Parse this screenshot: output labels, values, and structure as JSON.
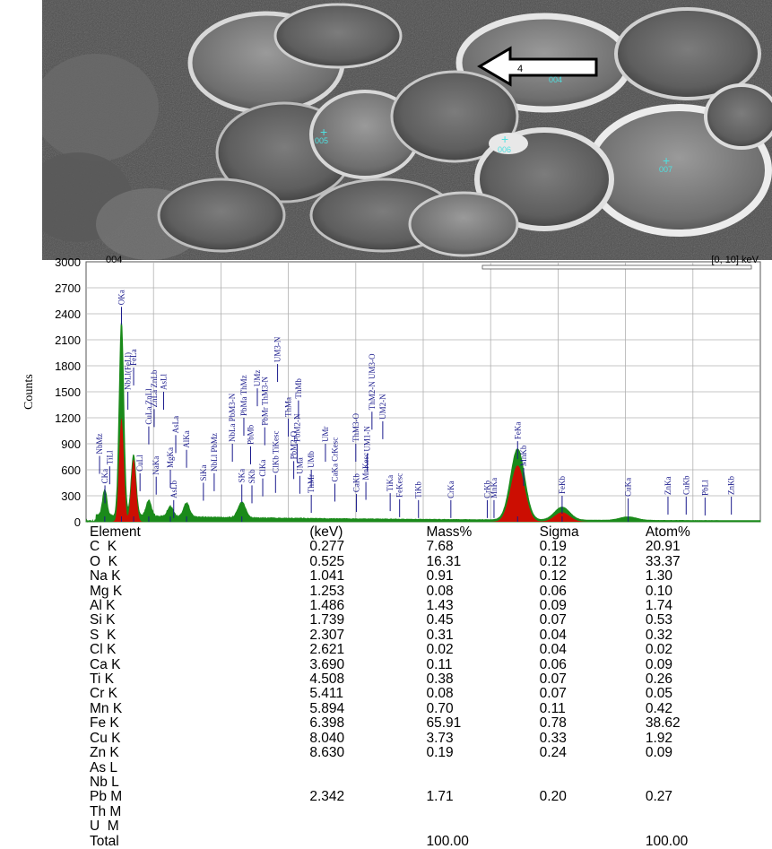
{
  "sem": {
    "markers": [
      {
        "label": "004"
      },
      {
        "label": "005"
      },
      {
        "label": "006"
      },
      {
        "label": "007"
      }
    ],
    "arrow_label": "4",
    "label_color": "#4fe0e0"
  },
  "chart_data": {
    "type": "line",
    "spectrum_label": "004",
    "range_label": "[0, 10] keV",
    "ylabel": "Counts",
    "xlabel": "",
    "xlim": [
      0,
      10
    ],
    "ylim": [
      0,
      3000
    ],
    "yticks": [
      0,
      300,
      600,
      900,
      1200,
      1500,
      1800,
      2100,
      2400,
      2700,
      3000
    ],
    "grid": true,
    "colors": {
      "spectrum": "#1a8a1a",
      "fit": "#e00000",
      "lines": "#1a1a8c",
      "grid": "#b0b0b0"
    },
    "peaks_keV_counts": [
      {
        "x": 0.277,
        "y": 300
      },
      {
        "x": 0.525,
        "y": 2250
      },
      {
        "x": 0.705,
        "y": 700
      },
      {
        "x": 0.93,
        "y": 180
      },
      {
        "x": 1.25,
        "y": 120
      },
      {
        "x": 1.49,
        "y": 160
      },
      {
        "x": 2.31,
        "y": 180
      },
      {
        "x": 6.4,
        "y": 820
      },
      {
        "x": 7.06,
        "y": 150
      },
      {
        "x": 8.04,
        "y": 40
      }
    ],
    "fit_peaks_keV_counts": [
      {
        "x": 0.525,
        "y": 1200
      },
      {
        "x": 0.705,
        "y": 720
      },
      {
        "x": 6.4,
        "y": 650
      },
      {
        "x": 7.06,
        "y": 110
      }
    ],
    "line_labels": [
      {
        "text": "NbMz",
        "x": 0.2,
        "y": 760
      },
      {
        "text": "TiLl",
        "x": 0.35,
        "y": 640
      },
      {
        "text": "CKa",
        "x": 0.28,
        "y": 420
      },
      {
        "text": "OKa",
        "x": 0.525,
        "y": 2480
      },
      {
        "text": "NbLl(FeLl)",
        "x": 0.62,
        "y": 1500
      },
      {
        "text": "FeLa",
        "x": 0.705,
        "y": 1780
      },
      {
        "text": "CuLl",
        "x": 0.8,
        "y": 560
      },
      {
        "text": "CuLa ZnLl",
        "x": 0.93,
        "y": 1100
      },
      {
        "text": "ZnLa ZnLb",
        "x": 1.01,
        "y": 1300
      },
      {
        "text": "AsLl",
        "x": 1.15,
        "y": 1500
      },
      {
        "text": "NaKa",
        "x": 1.04,
        "y": 520
      },
      {
        "text": "AsLb",
        "x": 1.3,
        "y": 250
      },
      {
        "text": "MgKa",
        "x": 1.25,
        "y": 600
      },
      {
        "text": "AsLa",
        "x": 1.33,
        "y": 1000
      },
      {
        "text": "AlKa",
        "x": 1.49,
        "y": 830
      },
      {
        "text": "SiKa",
        "x": 1.74,
        "y": 450
      },
      {
        "text": "NbLl PbMz",
        "x": 1.9,
        "y": 560
      },
      {
        "text": "NbLa PbM3-N",
        "x": 2.17,
        "y": 900
      },
      {
        "text": "SKa",
        "x": 2.31,
        "y": 430
      },
      {
        "text": "PbMa ThMz",
        "x": 2.34,
        "y": 1200
      },
      {
        "text": "SKb",
        "x": 2.46,
        "y": 420
      },
      {
        "text": "PbMb",
        "x": 2.44,
        "y": 870
      },
      {
        "text": "ClKa",
        "x": 2.62,
        "y": 500
      },
      {
        "text": "PbMr ThM3-N",
        "x": 2.65,
        "y": 1090
      },
      {
        "text": "UMz",
        "x": 2.54,
        "y": 1540
      },
      {
        "text": "ClKb TiKesc",
        "x": 2.81,
        "y": 540
      },
      {
        "text": "UM3-N",
        "x": 2.84,
        "y": 1820
      },
      {
        "text": "ThMa",
        "x": 3.0,
        "y": 1190
      },
      {
        "text": "PbM2-O",
        "x": 3.08,
        "y": 700
      },
      {
        "text": "PbM2-N",
        "x": 3.13,
        "y": 900
      },
      {
        "text": "ThMb",
        "x": 3.15,
        "y": 1400
      },
      {
        "text": "UMa",
        "x": 3.17,
        "y": 530
      },
      {
        "text": "UMb",
        "x": 3.34,
        "y": 600
      },
      {
        "text": "ThMr",
        "x": 3.34,
        "y": 310
      },
      {
        "text": "UMr",
        "x": 3.55,
        "y": 900
      },
      {
        "text": "CaKa CrKesc",
        "x": 3.69,
        "y": 440
      },
      {
        "text": "CaKb",
        "x": 4.01,
        "y": 320
      },
      {
        "text": "ThM3-O",
        "x": 4.0,
        "y": 900
      },
      {
        "text": "MnKesc",
        "x": 4.15,
        "y": 460
      },
      {
        "text": "UM1-N",
        "x": 4.17,
        "y": 790
      },
      {
        "text": "ThM2-N UM3-O",
        "x": 4.24,
        "y": 1270
      },
      {
        "text": "UM2-N",
        "x": 4.4,
        "y": 1160
      },
      {
        "text": "TiKa",
        "x": 4.51,
        "y": 330
      },
      {
        "text": "FeKesc",
        "x": 4.65,
        "y": 260
      },
      {
        "text": "TiKb",
        "x": 4.93,
        "y": 250
      },
      {
        "text": "CrKa",
        "x": 5.41,
        "y": 250
      },
      {
        "text": "CrKb",
        "x": 5.95,
        "y": 250
      },
      {
        "text": "MnKa",
        "x": 6.05,
        "y": 250
      },
      {
        "text": "FeKa",
        "x": 6.4,
        "y": 930
      },
      {
        "text": "MnKb",
        "x": 6.49,
        "y": 620
      },
      {
        "text": "FeKb",
        "x": 7.06,
        "y": 300
      },
      {
        "text": "CuKa",
        "x": 8.04,
        "y": 270
      },
      {
        "text": "ZnKa",
        "x": 8.63,
        "y": 290
      },
      {
        "text": "CuKb",
        "x": 8.9,
        "y": 290
      },
      {
        "text": "PbLl",
        "x": 9.18,
        "y": 280
      },
      {
        "text": "ZnKb",
        "x": 9.57,
        "y": 290
      }
    ]
  },
  "table": {
    "header": [
      "Element",
      "(keV)",
      "Mass%",
      "Sigma",
      "Atom%"
    ],
    "rows": [
      [
        "C  K",
        "0.277",
        "7.68",
        "0.19",
        "20.91"
      ],
      [
        "O  K",
        "0.525",
        "16.31",
        "0.12",
        "33.37"
      ],
      [
        "Na K",
        "1.041",
        "0.91",
        "0.12",
        "1.30"
      ],
      [
        "Mg K",
        "1.253",
        "0.08",
        "0.06",
        "0.10"
      ],
      [
        "Al K",
        "1.486",
        "1.43",
        "0.09",
        "1.74"
      ],
      [
        "Si K",
        "1.739",
        "0.45",
        "0.07",
        "0.53"
      ],
      [
        "S  K",
        "2.307",
        "0.31",
        "0.04",
        "0.32"
      ],
      [
        "Cl K",
        "2.621",
        "0.02",
        "0.04",
        "0.02"
      ],
      [
        "Ca K",
        "3.690",
        "0.11",
        "0.06",
        "0.09"
      ],
      [
        "Ti K",
        "4.508",
        "0.38",
        "0.07",
        "0.26"
      ],
      [
        "Cr K",
        "5.411",
        "0.08",
        "0.07",
        "0.05"
      ],
      [
        "Mn K",
        "5.894",
        "0.70",
        "0.11",
        "0.42"
      ],
      [
        "Fe K",
        "6.398",
        "65.91",
        "0.78",
        "38.62"
      ],
      [
        "Cu K",
        "8.040",
        "3.73",
        "0.33",
        "1.92"
      ],
      [
        "Zn K",
        "8.630",
        "0.19",
        "0.24",
        "0.09"
      ],
      [
        "As L",
        "",
        "",
        "",
        ""
      ],
      [
        "Nb L",
        "",
        "",
        "",
        ""
      ],
      [
        "Pb M",
        "2.342",
        "1.71",
        "0.20",
        "0.27"
      ],
      [
        "Th M",
        "",
        "",
        "",
        ""
      ],
      [
        "U  M",
        "",
        "",
        "",
        ""
      ],
      [
        "Total",
        "",
        "100.00",
        "",
        "100.00"
      ]
    ]
  }
}
